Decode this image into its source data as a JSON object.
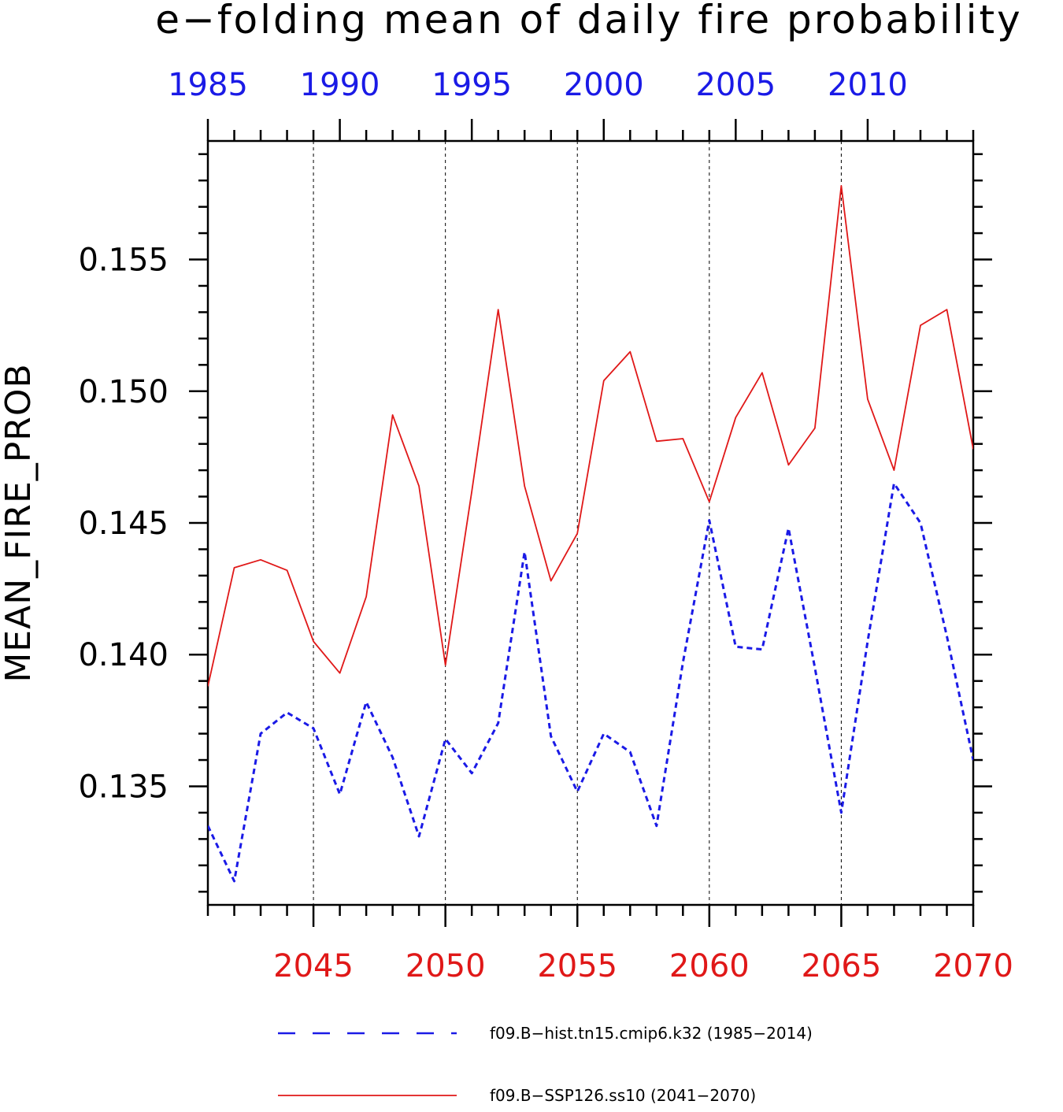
{
  "chart_data": {
    "type": "line",
    "title": "e−folding mean of daily fire probability",
    "ylabel": "MEAN_FIRE_PROB",
    "ylim": [
      0.1305,
      0.1595
    ],
    "y_ticks": [
      0.135,
      0.14,
      0.145,
      0.15,
      0.155
    ],
    "y_tick_labels": [
      "0.135",
      "0.140",
      "0.145",
      "0.150",
      "0.155"
    ],
    "x_bottom": {
      "range": [
        2041,
        2070
      ],
      "ticks": [
        2045,
        2050,
        2055,
        2060,
        2065,
        2070
      ],
      "tick_labels": [
        "2045",
        "2050",
        "2055",
        "2060",
        "2065",
        "2070"
      ],
      "color": "#e01818"
    },
    "x_top": {
      "range": [
        1985,
        2014
      ],
      "ticks": [
        1985,
        1990,
        1995,
        2000,
        2005,
        2010
      ],
      "tick_labels": [
        "1985",
        "1990",
        "1995",
        "2000",
        "2005",
        "2010"
      ],
      "color": "#1a1ae6"
    },
    "grid": "vertical dashed at major bottom-axis ticks",
    "legend_position": "bottom",
    "series": [
      {
        "name": "f09.B−hist.tn15.cmip6.k32 (1985−2014)",
        "color": "#1a1ae6",
        "style": "dashed",
        "axis": "top",
        "x": [
          1985,
          1986,
          1987,
          1988,
          1989,
          1990,
          1991,
          1992,
          1993,
          1994,
          1995,
          1996,
          1997,
          1998,
          1999,
          2000,
          2001,
          2002,
          2003,
          2004,
          2005,
          2006,
          2007,
          2008,
          2009,
          2010,
          2011,
          2012,
          2013,
          2014
        ],
        "values": [
          0.1335,
          0.1314,
          0.137,
          0.1378,
          0.1372,
          0.1347,
          0.1382,
          0.1361,
          0.1331,
          0.1368,
          0.1355,
          0.1374,
          0.1439,
          0.1369,
          0.1348,
          0.137,
          0.1363,
          0.1335,
          0.1397,
          0.1451,
          0.1403,
          0.1402,
          0.1448,
          0.1395,
          0.134,
          0.1405,
          0.1465,
          0.145,
          0.1407,
          0.136
        ]
      },
      {
        "name": "f09.B−SSP126.ss10 (2041−2070)",
        "color": "#e01818",
        "style": "solid",
        "axis": "bottom",
        "x": [
          2041,
          2042,
          2043,
          2044,
          2045,
          2046,
          2047,
          2048,
          2049,
          2050,
          2051,
          2052,
          2053,
          2054,
          2055,
          2056,
          2057,
          2058,
          2059,
          2060,
          2061,
          2062,
          2063,
          2064,
          2065,
          2066,
          2067,
          2068,
          2069,
          2070
        ],
        "values": [
          0.1388,
          0.1433,
          0.1436,
          0.1432,
          0.1405,
          0.1393,
          0.1422,
          0.1491,
          0.1464,
          0.1396,
          0.1462,
          0.1531,
          0.1464,
          0.1428,
          0.1446,
          0.1504,
          0.1515,
          0.1481,
          0.1482,
          0.1458,
          0.149,
          0.1507,
          0.1472,
          0.1486,
          0.1578,
          0.1497,
          0.147,
          0.1525,
          0.1531,
          0.1478
        ]
      }
    ]
  }
}
